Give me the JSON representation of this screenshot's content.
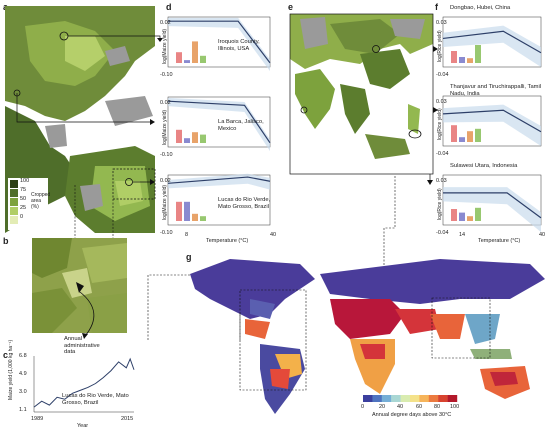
{
  "panels": {
    "a": {
      "label": "a",
      "legend_title": "Cropped area (%)",
      "legend_ticks": [
        "100",
        "75",
        "50",
        "25",
        "0"
      ]
    },
    "b": {
      "label": "b",
      "annotation": "Annual administrative data"
    },
    "c": {
      "label": "c",
      "ylabel": "Maize yield (1,000 kg ha⁻¹)",
      "yticks": [
        "6.8",
        "4.9",
        "3.0",
        "1.1"
      ],
      "xticks": [
        "1989",
        "2015"
      ],
      "xlabel": "Year",
      "site": "Lucas do Rio Verde, Mato Grosso, Brazil"
    },
    "d": {
      "label": "d",
      "ylabel": "log(Maize yield)",
      "xlabel": "Temperature (°C)",
      "xticks": [
        "8",
        "40"
      ]
    },
    "e": {
      "label": "e"
    },
    "f": {
      "label": "f",
      "ylabel": "log(Rice yield)",
      "xlabel": "Temperature (°C)",
      "xticks": [
        "14",
        "40"
      ]
    },
    "g": {
      "label": "g",
      "colorbar_title": "Annual degree days above 30°C",
      "colorbar_ticks": [
        "0",
        "20",
        "40",
        "60",
        "80",
        "100"
      ]
    }
  },
  "chart_data": [
    {
      "type": "line",
      "panel": "d",
      "site": "Iroquois County, Illinois, USA",
      "yticks": [
        "0.02",
        "-0.10"
      ],
      "x": [
        8,
        30,
        40
      ],
      "y": [
        0.01,
        0.01,
        -0.09
      ],
      "bars": [
        0.45,
        0.12,
        0.9,
        0.3
      ]
    },
    {
      "type": "line",
      "panel": "d",
      "site": "La Barca, Jalisco, Mexico",
      "yticks": [
        "0.02",
        "-0.10"
      ],
      "x": [
        8,
        32,
        40
      ],
      "y": [
        0.01,
        0.0,
        -0.09
      ],
      "bars": [
        0.55,
        0.2,
        0.45,
        0.35
      ]
    },
    {
      "type": "line",
      "panel": "d",
      "site": "Lucas do Rio Verde, Mato Grosso, Brazil",
      "yticks": [
        "0.02",
        "-0.10"
      ],
      "x": [
        8,
        33,
        40
      ],
      "y": [
        0.0,
        0.015,
        0.005
      ],
      "bars": [
        0.8,
        0.8,
        0.3,
        0.2
      ]
    },
    {
      "type": "line",
      "panel": "f",
      "site": "Dongbao, Hubei, China",
      "yticks": [
        "0.03",
        "-0.04"
      ],
      "x": [
        14,
        30,
        40
      ],
      "y": [
        0.0,
        0.01,
        -0.02
      ],
      "bars": [
        0.5,
        0.25,
        0.2,
        0.75
      ]
    },
    {
      "type": "line",
      "panel": "f",
      "site": "Thanjavur and Tiruchirappalli, Tamil Nadu, India",
      "yticks": [
        "0.03",
        "-0.04"
      ],
      "x": [
        14,
        30,
        40
      ],
      "y": [
        0.005,
        0.01,
        -0.02
      ],
      "bars": [
        0.7,
        0.2,
        0.45,
        0.55
      ]
    },
    {
      "type": "line",
      "panel": "f",
      "site": "Sulawesi Utara, Indonesia",
      "yticks": [
        "0.03",
        "-0.04"
      ],
      "x": [
        14,
        31,
        40
      ],
      "y": [
        0.005,
        0.005,
        -0.03
      ],
      "bars": [
        0.5,
        0.35,
        0.2,
        0.55
      ]
    },
    {
      "type": "line",
      "panel": "c",
      "x": [
        1989,
        1991,
        1993,
        1995,
        1997,
        1999,
        2001,
        2003,
        2005,
        2007,
        2009,
        2011,
        2013,
        2014,
        2015
      ],
      "y": [
        1.6,
        2.2,
        1.8,
        2.6,
        2.4,
        3.0,
        3.3,
        3.6,
        4.0,
        4.6,
        5.3,
        6.2,
        5.6,
        6.5,
        5.4
      ]
    }
  ]
}
